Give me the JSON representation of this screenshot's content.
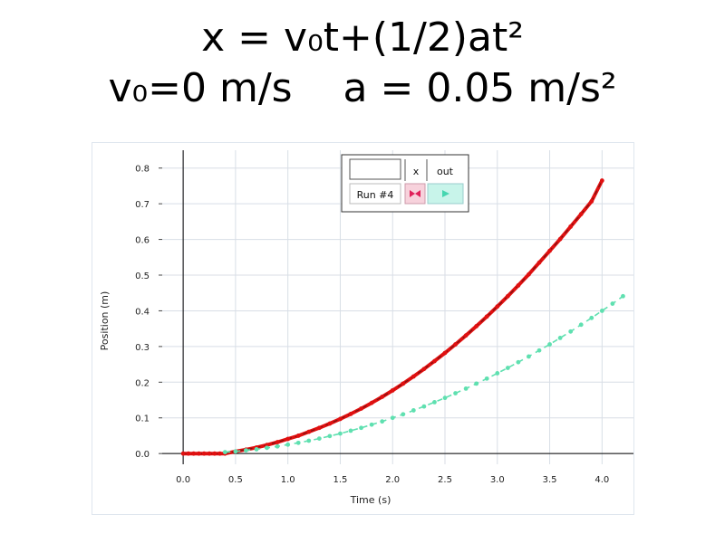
{
  "header": {
    "equation_line1": "x = v₀t+(1/2)at²",
    "equation_line2": "v₀=0 m/s    a = 0.05 m/s²"
  },
  "chart_data": {
    "type": "line",
    "xlabel": "Time (s)",
    "ylabel": "Position (m)",
    "xlim": [
      -0.2,
      4.3
    ],
    "ylim": [
      -0.03,
      0.85
    ],
    "xticks": [
      "0.0",
      "0.5",
      "1.0",
      "1.5",
      "2.0",
      "2.5",
      "3.0",
      "3.5",
      "4.0"
    ],
    "yticks": [
      "0.0",
      "0.1",
      "0.2",
      "0.3",
      "0.4",
      "0.5",
      "0.6",
      "0.7",
      "0.8"
    ],
    "grid": true,
    "legend_position": "top-right",
    "legend": {
      "header_x": "x",
      "header_out": "out",
      "run_label": "Run #4"
    },
    "colors": {
      "run": "#e01010",
      "run_dark": "#7a1010",
      "model": "#5fe0b0",
      "axis": "#000000",
      "grid": "#d8dee6"
    },
    "series": [
      {
        "name": "Run #4",
        "color": "#e01010",
        "x": [
          0.0,
          0.05,
          0.1,
          0.15,
          0.2,
          0.25,
          0.3,
          0.35,
          0.4,
          0.5,
          0.6,
          0.7,
          0.8,
          0.9,
          1.0,
          1.1,
          1.2,
          1.3,
          1.4,
          1.5,
          1.6,
          1.7,
          1.8,
          1.9,
          2.0,
          2.1,
          2.2,
          2.3,
          2.4,
          2.5,
          2.6,
          2.7,
          2.8,
          2.9,
          3.0,
          3.1,
          3.2,
          3.3,
          3.4,
          3.5,
          3.6,
          3.7,
          3.8,
          3.9,
          4.0
        ],
        "y": [
          0.0,
          0.0,
          0.0,
          0.0,
          0.0,
          0.0,
          0.0,
          0.0,
          0.0,
          0.006,
          0.011,
          0.017,
          0.024,
          0.032,
          0.041,
          0.05,
          0.061,
          0.072,
          0.084,
          0.097,
          0.111,
          0.126,
          0.142,
          0.159,
          0.177,
          0.196,
          0.216,
          0.237,
          0.259,
          0.282,
          0.306,
          0.331,
          0.357,
          0.384,
          0.412,
          0.441,
          0.471,
          0.502,
          0.535,
          0.568,
          0.601,
          0.636,
          0.671,
          0.707,
          0.765
        ]
      },
      {
        "name": "",
        "color": "#5fe0b0",
        "x": [
          0.4,
          0.5,
          0.6,
          0.7,
          0.8,
          0.9,
          1.0,
          1.1,
          1.2,
          1.3,
          1.4,
          1.5,
          1.6,
          1.7,
          1.8,
          1.9,
          2.0,
          2.1,
          2.2,
          2.3,
          2.4,
          2.5,
          2.6,
          2.7,
          2.8,
          2.9,
          3.0,
          3.1,
          3.2,
          3.3,
          3.4,
          3.5,
          3.6,
          3.7,
          3.8,
          3.9,
          4.0,
          4.1,
          4.2
        ],
        "y": [
          0.004,
          0.006,
          0.009,
          0.012,
          0.016,
          0.02,
          0.025,
          0.03,
          0.036,
          0.042,
          0.049,
          0.056,
          0.064,
          0.072,
          0.081,
          0.09,
          0.1,
          0.11,
          0.121,
          0.132,
          0.144,
          0.156,
          0.169,
          0.182,
          0.196,
          0.21,
          0.225,
          0.24,
          0.256,
          0.272,
          0.289,
          0.306,
          0.324,
          0.342,
          0.361,
          0.38,
          0.4,
          0.42,
          0.441
        ]
      }
    ]
  }
}
